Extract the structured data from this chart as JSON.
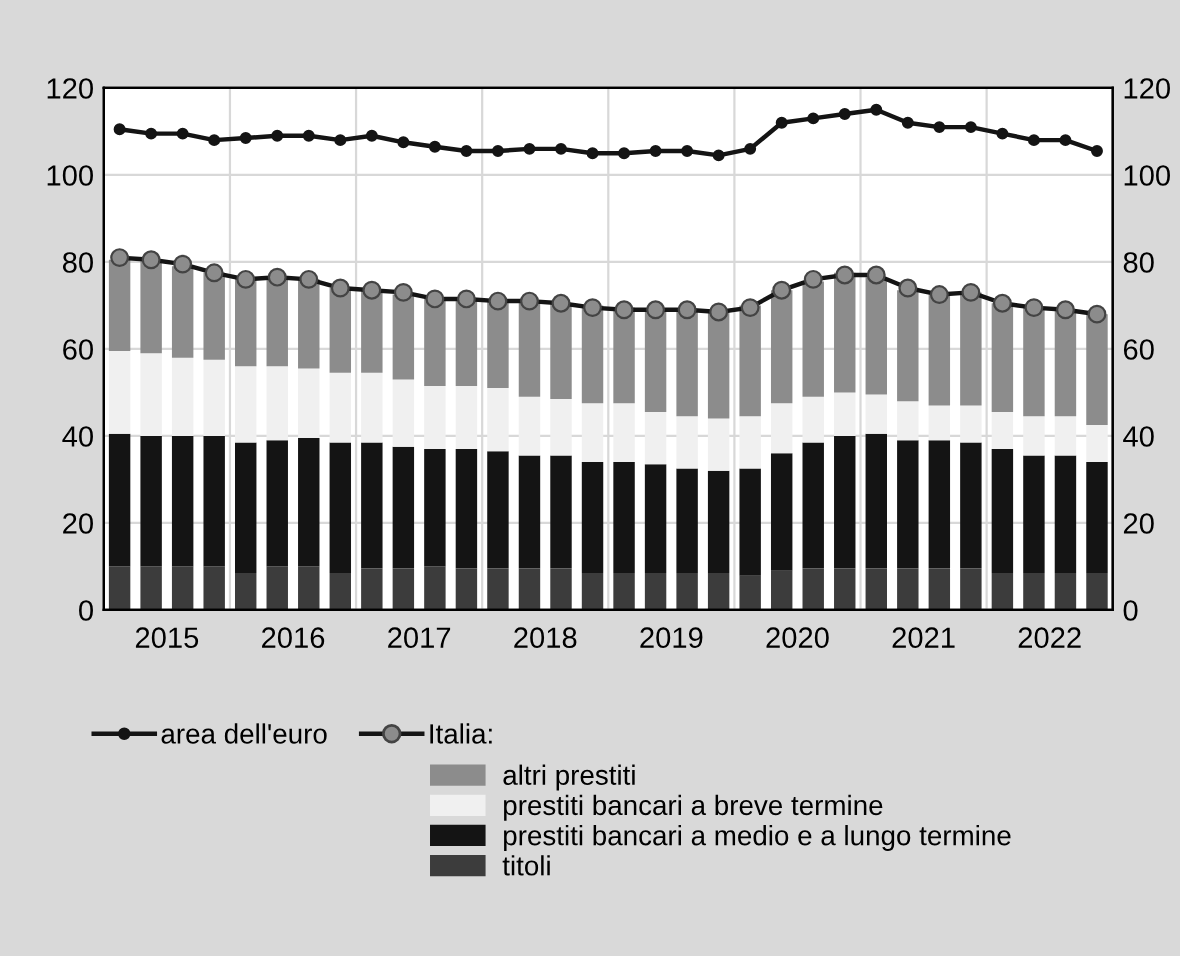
{
  "chart_data": {
    "type": "bar",
    "stacked": true,
    "x": [
      2015.125,
      2015.375,
      2015.625,
      2015.875,
      2016.125,
      2016.375,
      2016.625,
      2016.875,
      2017.125,
      2017.375,
      2017.625,
      2017.875,
      2018.125,
      2018.375,
      2018.625,
      2018.875,
      2019.125,
      2019.375,
      2019.625,
      2019.875,
      2020.125,
      2020.375,
      2020.625,
      2020.875,
      2021.125,
      2021.375,
      2021.625,
      2021.875,
      2022.125,
      2022.375,
      2022.625,
      2022.875
    ],
    "xlim": [
      2015,
      2023
    ],
    "xticks": [
      {
        "value": 2015.5,
        "label": "2015"
      },
      {
        "value": 2016.5,
        "label": "2016"
      },
      {
        "value": 2017.5,
        "label": "2017"
      },
      {
        "value": 2018.5,
        "label": "2018"
      },
      {
        "value": 2019.5,
        "label": "2019"
      },
      {
        "value": 2020.5,
        "label": "2020"
      },
      {
        "value": 2021.5,
        "label": "2021"
      },
      {
        "value": 2022.5,
        "label": "2022"
      }
    ],
    "ylim": [
      0,
      120
    ],
    "yticks": [
      0,
      20,
      40,
      60,
      80,
      100,
      120
    ],
    "y2lim": [
      0,
      120
    ],
    "y2ticks": [
      0,
      20,
      40,
      60,
      80,
      100,
      120
    ],
    "grid": true,
    "legend": "bottom",
    "series": [
      {
        "name": "titoli",
        "color": "#3c3c3c",
        "values": [
          10,
          10,
          10,
          10,
          8.5,
          10,
          10,
          8.5,
          9.5,
          9.5,
          10,
          9.5,
          9.5,
          9.5,
          9.5,
          8.5,
          8.5,
          8.5,
          8.5,
          8.5,
          8,
          9,
          9.5,
          9.5,
          9.5,
          9.5,
          9.5,
          9.5,
          8.5,
          8.5,
          8.5,
          8.5
        ]
      },
      {
        "name": "prestiti bancari a medio e a lungo termine",
        "color": "#141414",
        "values": [
          30.5,
          30,
          30,
          30,
          30,
          29,
          29.5,
          30,
          29,
          28,
          27,
          27.5,
          27,
          26,
          26,
          25.5,
          25.5,
          25,
          24,
          23.5,
          24.5,
          27,
          29,
          30.5,
          31,
          29.5,
          29.5,
          29,
          28.5,
          27,
          27,
          25.5
        ]
      },
      {
        "name": "prestiti bancari a breve termine",
        "color": "#f0f0f0",
        "values": [
          19,
          19,
          18,
          17.5,
          17.5,
          17,
          16,
          16,
          16,
          15.5,
          14.5,
          14.5,
          14.5,
          13.5,
          13,
          13.5,
          13.5,
          12,
          12,
          12,
          12,
          11.5,
          10.5,
          10,
          9,
          9,
          8,
          8.5,
          8.5,
          9,
          9,
          8.5
        ]
      },
      {
        "name": "altri prestiti",
        "color": "#8c8c8c",
        "values": [
          21,
          21.5,
          21,
          20,
          20.5,
          20.5,
          20.5,
          19.5,
          19,
          19.5,
          20,
          20,
          20,
          22,
          22,
          22.5,
          22,
          23.5,
          24.5,
          24.5,
          25.5,
          26,
          26.5,
          27.5,
          27,
          25.5,
          25.5,
          26,
          25,
          25,
          24.5,
          25.5
        ]
      },
      {
        "name": "area dell'euro",
        "type": "line",
        "color": "#141414",
        "marker": "circle",
        "values": [
          110.5,
          109.5,
          109.5,
          108,
          108.5,
          109,
          109,
          108,
          109,
          107.5,
          106.5,
          105.5,
          105.5,
          106,
          106,
          105,
          105,
          105.5,
          105.5,
          104.5,
          106,
          112,
          113,
          114,
          115,
          112,
          111,
          111,
          109.5,
          108,
          108,
          105.5
        ]
      },
      {
        "name": "Italia:",
        "type": "line",
        "color": "#8c8c8c",
        "marker": "circle",
        "values": [
          81,
          80.5,
          79.5,
          77.5,
          76,
          76.5,
          76,
          74,
          73.5,
          73,
          71.5,
          71.5,
          71,
          71,
          70.5,
          69.5,
          69,
          69,
          69,
          68.5,
          69.5,
          73.5,
          76,
          77,
          77,
          74,
          72.5,
          73,
          70.5,
          69.5,
          69,
          68
        ]
      }
    ]
  }
}
